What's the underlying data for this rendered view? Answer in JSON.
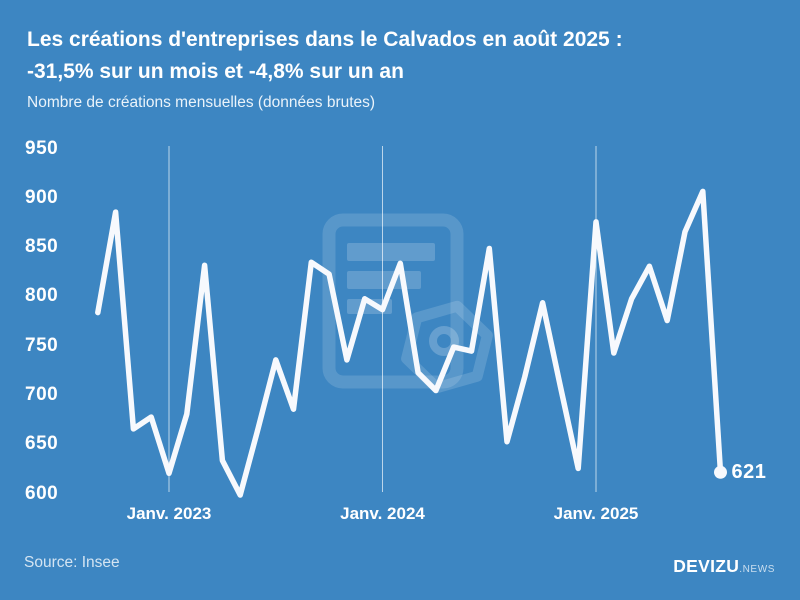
{
  "header": {
    "title_line1": "Les créations d'entreprises dans le Calvados en août 2025 :",
    "title_line2": "-31,5% sur un mois et -4,8% sur un an",
    "subtitle": "Nombre de créations mensuelles (données brutes)"
  },
  "chart_data": {
    "type": "line",
    "title": "Les créations d'entreprises dans le Calvados en août 2025 : -31,5% sur un mois et -4,8% sur un an",
    "subtitle": "Nombre de créations mensuelles (données brutes)",
    "x": [
      "Sept. 2022",
      "Oct. 2022",
      "Nov. 2022",
      "Déc. 2022",
      "Janv. 2023",
      "Févr. 2023",
      "Mars 2023",
      "Avr. 2023",
      "Mai 2023",
      "Juin 2023",
      "Juil. 2023",
      "Août 2023",
      "Sept. 2023",
      "Oct. 2023",
      "Nov. 2023",
      "Déc. 2023",
      "Janv. 2024",
      "Févr. 2024",
      "Mars 2024",
      "Avr. 2024",
      "Mai 2024",
      "Juin 2024",
      "Juil. 2024",
      "Août 2024",
      "Sept. 2024",
      "Oct. 2024",
      "Nov. 2024",
      "Déc. 2024",
      "Janv. 2025",
      "Févr. 2025",
      "Mars 2025",
      "Avr. 2025",
      "Mai 2025",
      "Juin 2025",
      "Juil. 2025",
      "Août 2025"
    ],
    "values": [
      783,
      885,
      665,
      677,
      620,
      680,
      831,
      633,
      598,
      665,
      735,
      685,
      834,
      822,
      735,
      797,
      786,
      833,
      722,
      704,
      748,
      744,
      848,
      652,
      718,
      793,
      708,
      625,
      875,
      742,
      797,
      830,
      775,
      865,
      906,
      621
    ],
    "y_ticks": [
      950,
      900,
      850,
      800,
      750,
      700,
      650,
      600
    ],
    "ylim": [
      600,
      950
    ],
    "x_gridlines": [
      {
        "index": 4,
        "label": "Janv. 2023"
      },
      {
        "index": 16,
        "label": "Janv. 2024"
      },
      {
        "index": 28,
        "label": "Janv. 2025"
      }
    ],
    "end_point_label": "621",
    "line_color": "#f7f9fd",
    "background_color": "#3d86c2",
    "grid": "vertical-only",
    "legend": "none"
  },
  "footer": {
    "source": "Source: Insee",
    "logo_main": "DEVIZU",
    "logo_suffix": ".NEWS"
  }
}
